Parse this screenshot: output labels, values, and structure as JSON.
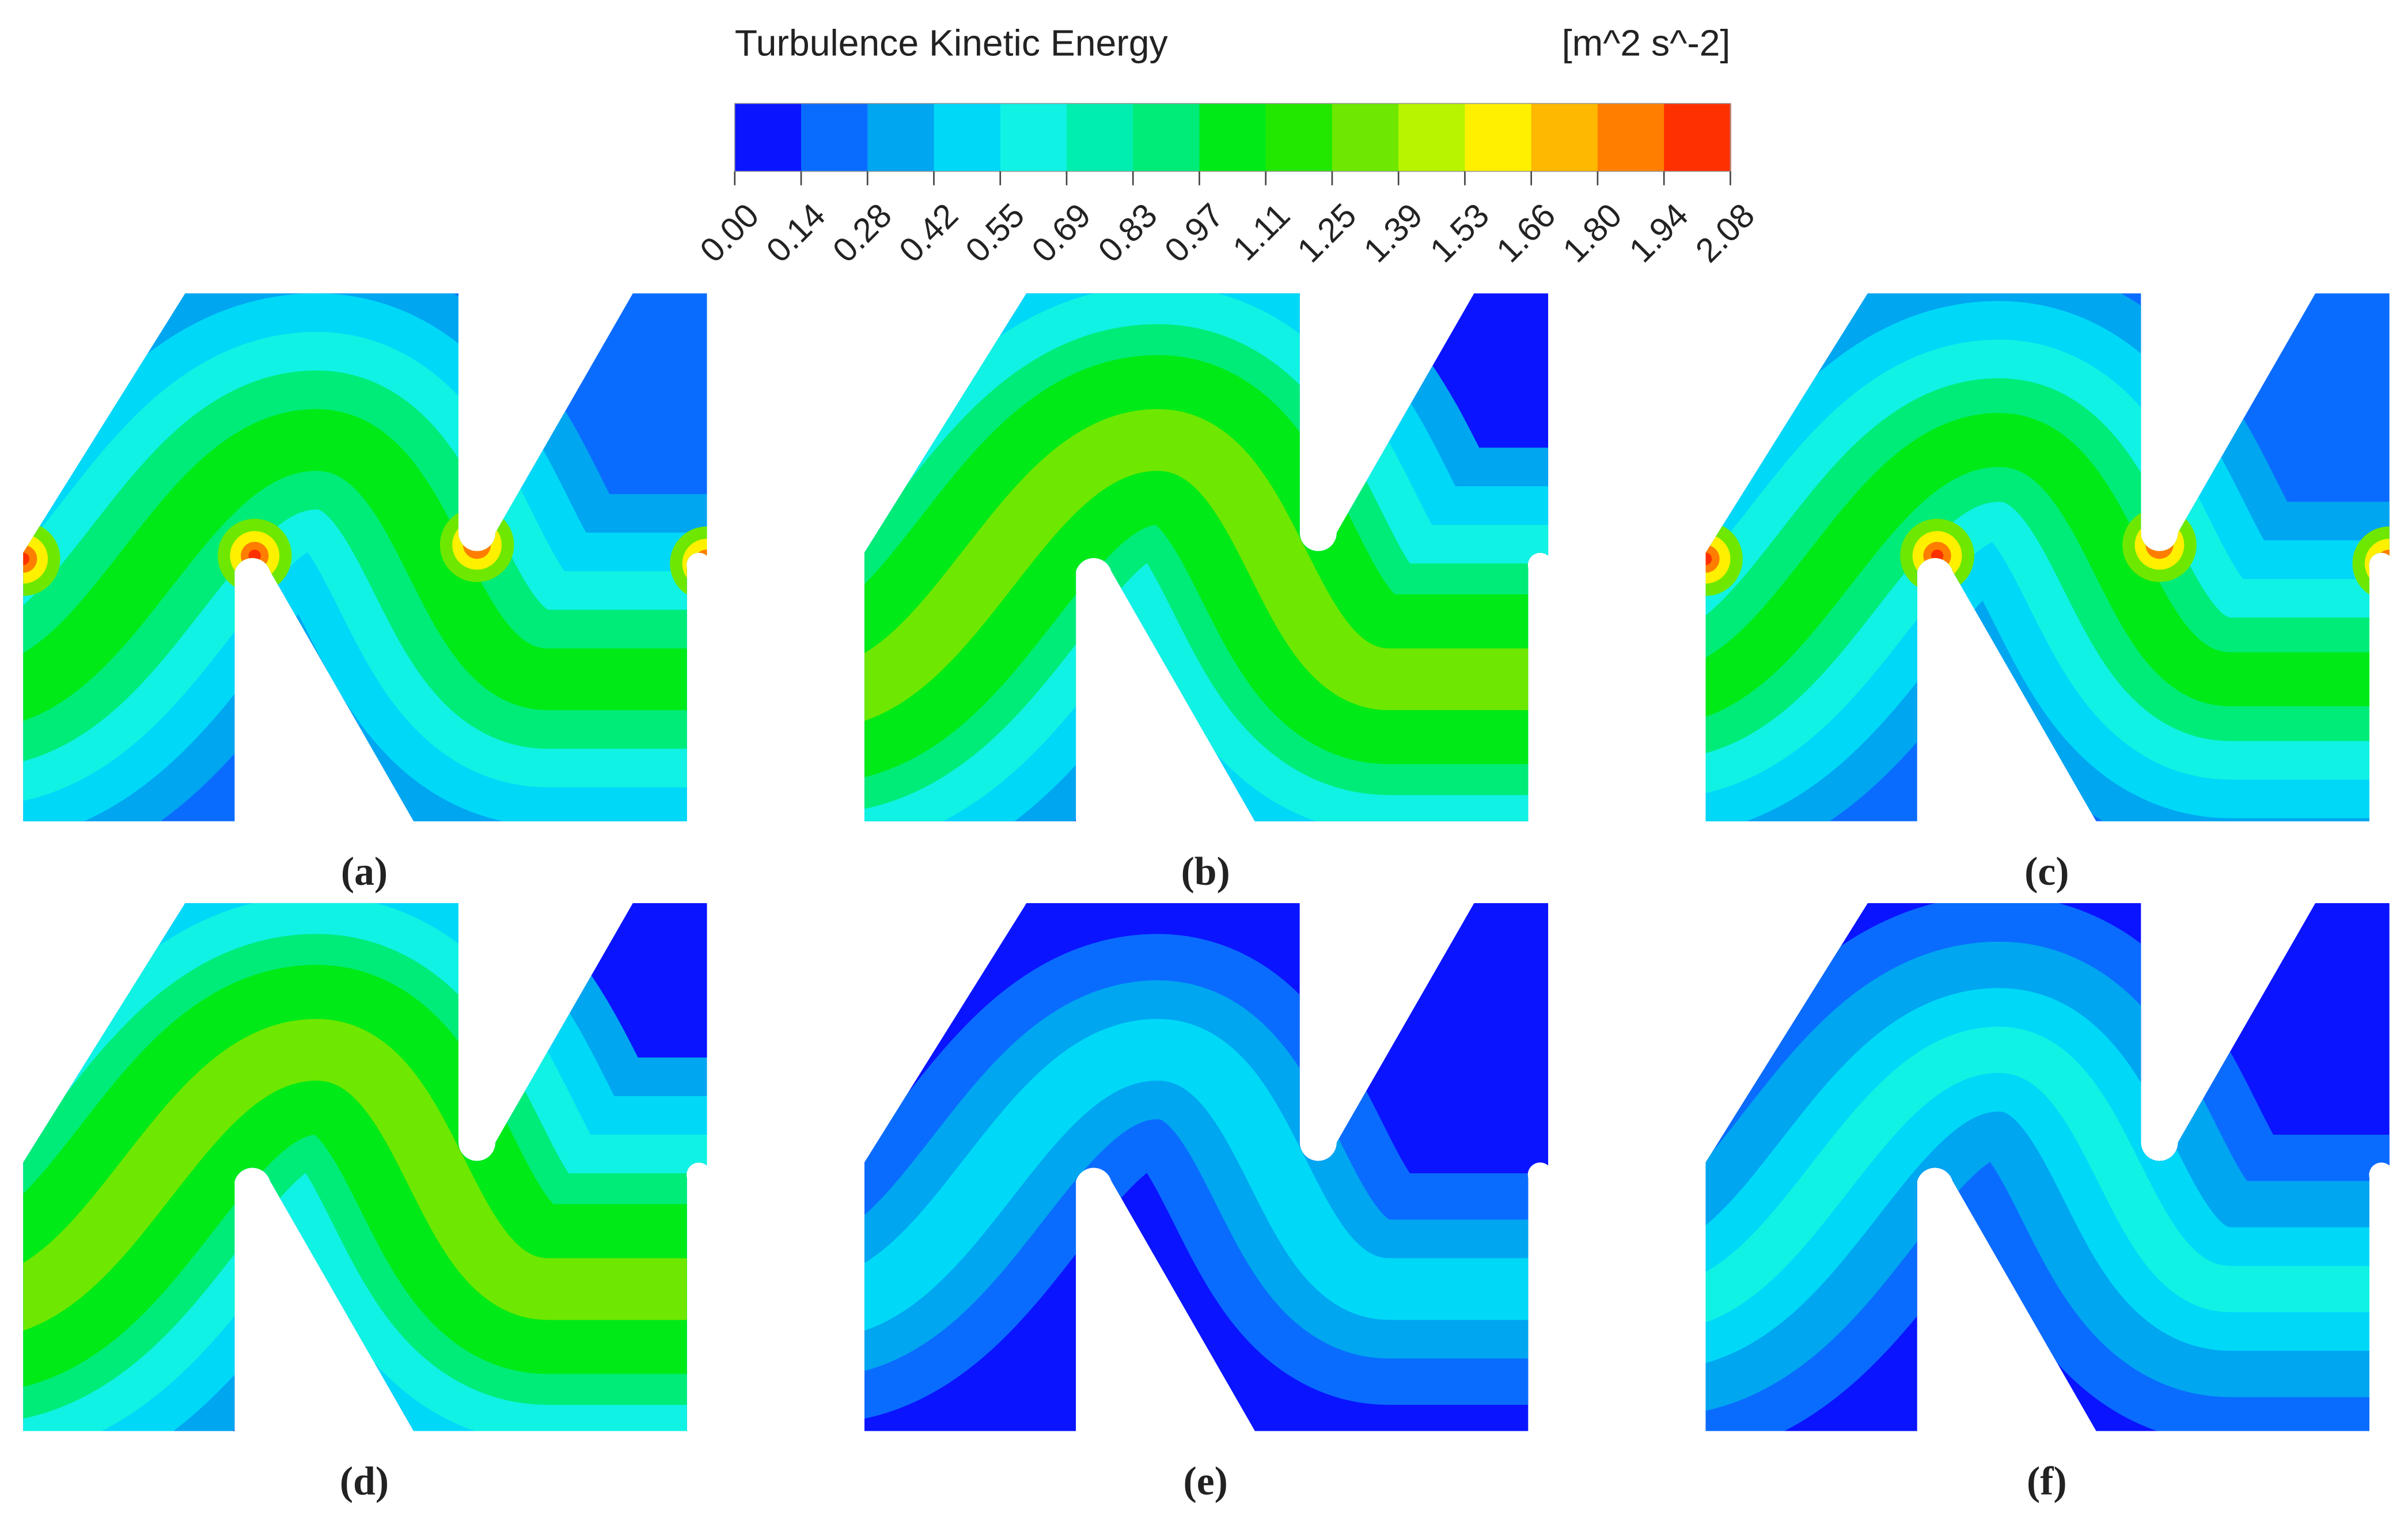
{
  "legend": {
    "title": "Turbulence Kinetic Energy",
    "unit": "[m^2 s^-2]",
    "ticks": [
      "0.00",
      "0.14",
      "0.28",
      "0.42",
      "0.55",
      "0.69",
      "0.83",
      "0.97",
      "1.11",
      "1.25",
      "1.39",
      "1.53",
      "1.66",
      "1.80",
      "1.94",
      "2.08"
    ],
    "colors": [
      "#0a14ff",
      "#0a6cff",
      "#00a6f0",
      "#00d8f8",
      "#10f2e4",
      "#00eeb0",
      "#00ec78",
      "#00ea18",
      "#22e800",
      "#6ee800",
      "#b8f400",
      "#fff000",
      "#ffb800",
      "#ff7e00",
      "#ff3000"
    ]
  },
  "panels": [
    {
      "label": "(a)"
    },
    {
      "label": "(b)"
    },
    {
      "label": "(c)"
    },
    {
      "label": "(d)"
    },
    {
      "label": "(e)"
    },
    {
      "label": "(f)"
    }
  ]
}
